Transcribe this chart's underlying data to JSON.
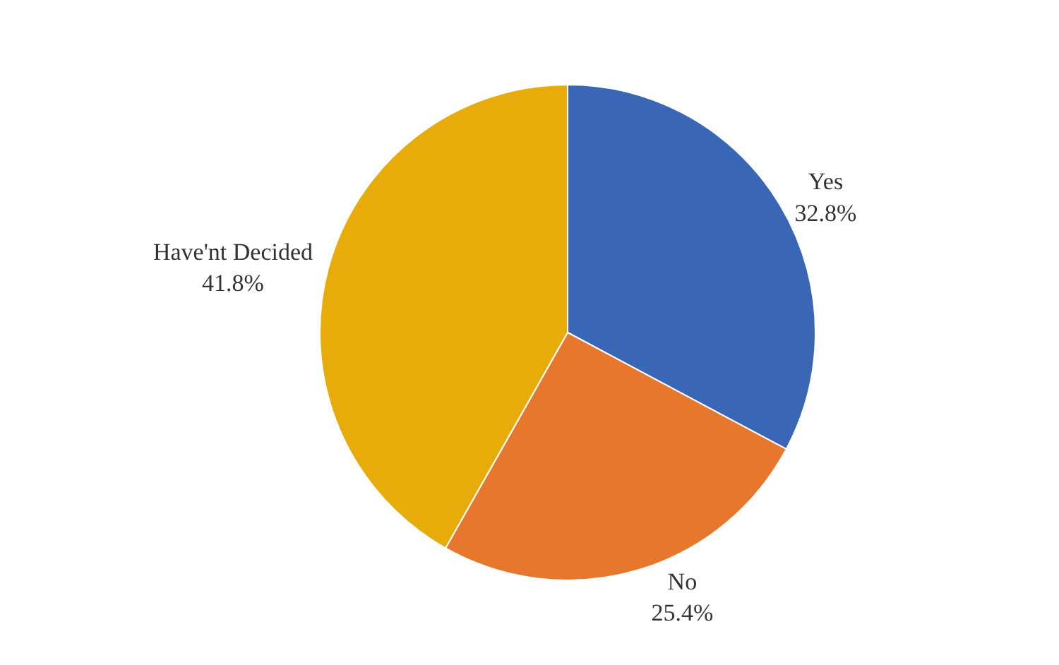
{
  "chart_data": {
    "type": "pie",
    "categories": [
      "Yes",
      "No",
      "Have'nt Decided"
    ],
    "values": [
      32.8,
      25.4,
      41.8
    ],
    "value_labels": [
      "32.8%",
      "25.4%",
      "41.8%"
    ],
    "colors": [
      "#3a67b5",
      "#e8772e",
      "#e8ac0a"
    ],
    "legend": false
  }
}
